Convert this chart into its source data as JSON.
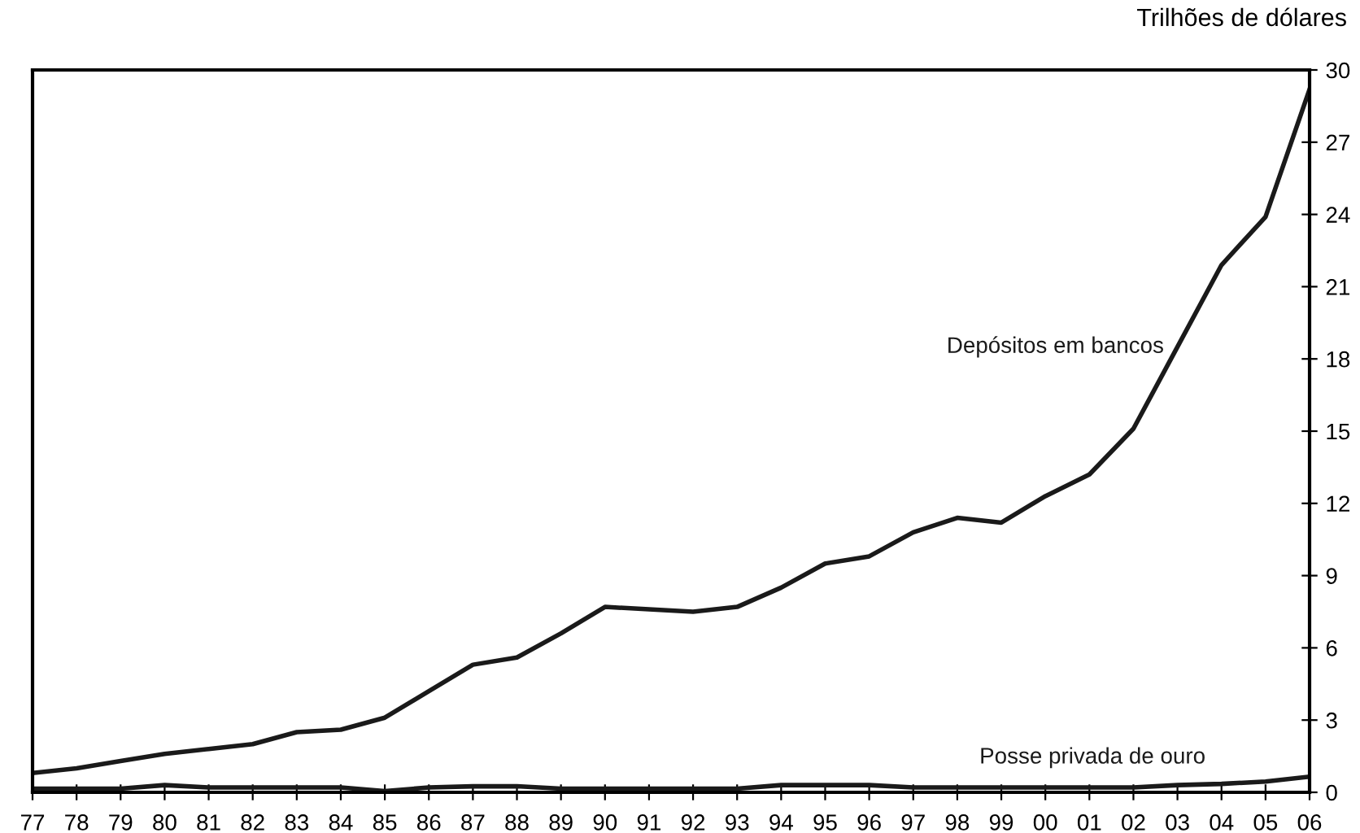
{
  "chart_data": {
    "type": "line",
    "ylabel": "Trilhões de dólares",
    "categories": [
      "77",
      "78",
      "79",
      "80",
      "81",
      "82",
      "83",
      "84",
      "85",
      "86",
      "87",
      "88",
      "89",
      "90",
      "91",
      "92",
      "93",
      "94",
      "95",
      "96",
      "97",
      "98",
      "99",
      "00",
      "01",
      "02",
      "03",
      "04",
      "05",
      "06"
    ],
    "series": [
      {
        "name": "Depósitos em bancos",
        "color": "#1a1a1a",
        "values": [
          0.8,
          1.0,
          1.3,
          1.6,
          1.8,
          2.0,
          2.5,
          2.6,
          3.1,
          4.2,
          5.3,
          5.6,
          6.6,
          7.7,
          7.6,
          7.5,
          7.7,
          8.5,
          9.5,
          9.8,
          10.8,
          11.4,
          11.2,
          12.3,
          13.2,
          15.1,
          18.5,
          21.9,
          23.9,
          29.2
        ]
      },
      {
        "name": "Posse privada de ouro",
        "color": "#1a1a1a",
        "values": [
          0.15,
          0.15,
          0.15,
          0.3,
          0.2,
          0.2,
          0.2,
          0.2,
          0.05,
          0.2,
          0.25,
          0.25,
          0.15,
          0.15,
          0.15,
          0.15,
          0.15,
          0.3,
          0.3,
          0.3,
          0.2,
          0.2,
          0.2,
          0.2,
          0.2,
          0.2,
          0.3,
          0.35,
          0.45,
          0.65
        ]
      }
    ],
    "ylim": [
      0,
      30
    ],
    "yticks": [
      0,
      3,
      6,
      9,
      12,
      15,
      18,
      21,
      24,
      27,
      30
    ],
    "grid": false,
    "legend": false,
    "marker": "none",
    "line_style": "solid"
  }
}
